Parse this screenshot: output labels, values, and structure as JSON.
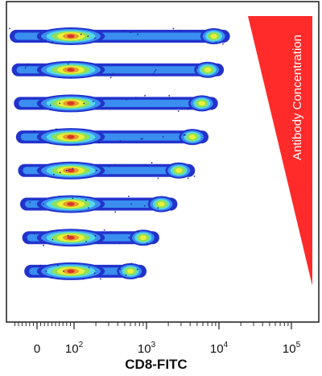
{
  "chart_data": {
    "type": "scatter",
    "subtype": "flow-cytometry-dot-plot",
    "xlabel": "CD8-FITC",
    "x_scale": "biexponential",
    "x_ticks": [
      {
        "value": 0,
        "base": "0",
        "exp": ""
      },
      {
        "value": 100,
        "base": "10",
        "exp": "2"
      },
      {
        "value": 1000,
        "base": "10",
        "exp": "3"
      },
      {
        "value": 10000,
        "base": "10",
        "exp": "4"
      },
      {
        "value": 100000,
        "base": "10",
        "exp": "5"
      }
    ],
    "annotation": {
      "text": "Antibody Concentration",
      "shape": "wedge",
      "direction": "decreasing-downward",
      "color": "#ff2a2a"
    },
    "density_colors": [
      "#2233cc",
      "#3a8ef0",
      "#55d8e8",
      "#8ee05a",
      "#e8f03a",
      "#e89a2a",
      "#d8342a"
    ],
    "series": [
      {
        "neg_peak": 100,
        "pos_peak": 8500
      },
      {
        "neg_peak": 100,
        "pos_peak": 7000
      },
      {
        "neg_peak": 100,
        "pos_peak": 5800
      },
      {
        "neg_peak": 100,
        "pos_peak": 4300
      },
      {
        "neg_peak": 100,
        "pos_peak": 2800
      },
      {
        "neg_peak": 100,
        "pos_peak": 1600
      },
      {
        "neg_peak": 100,
        "pos_peak": 900
      },
      {
        "neg_peak": 100,
        "pos_peak": 600
      }
    ]
  }
}
